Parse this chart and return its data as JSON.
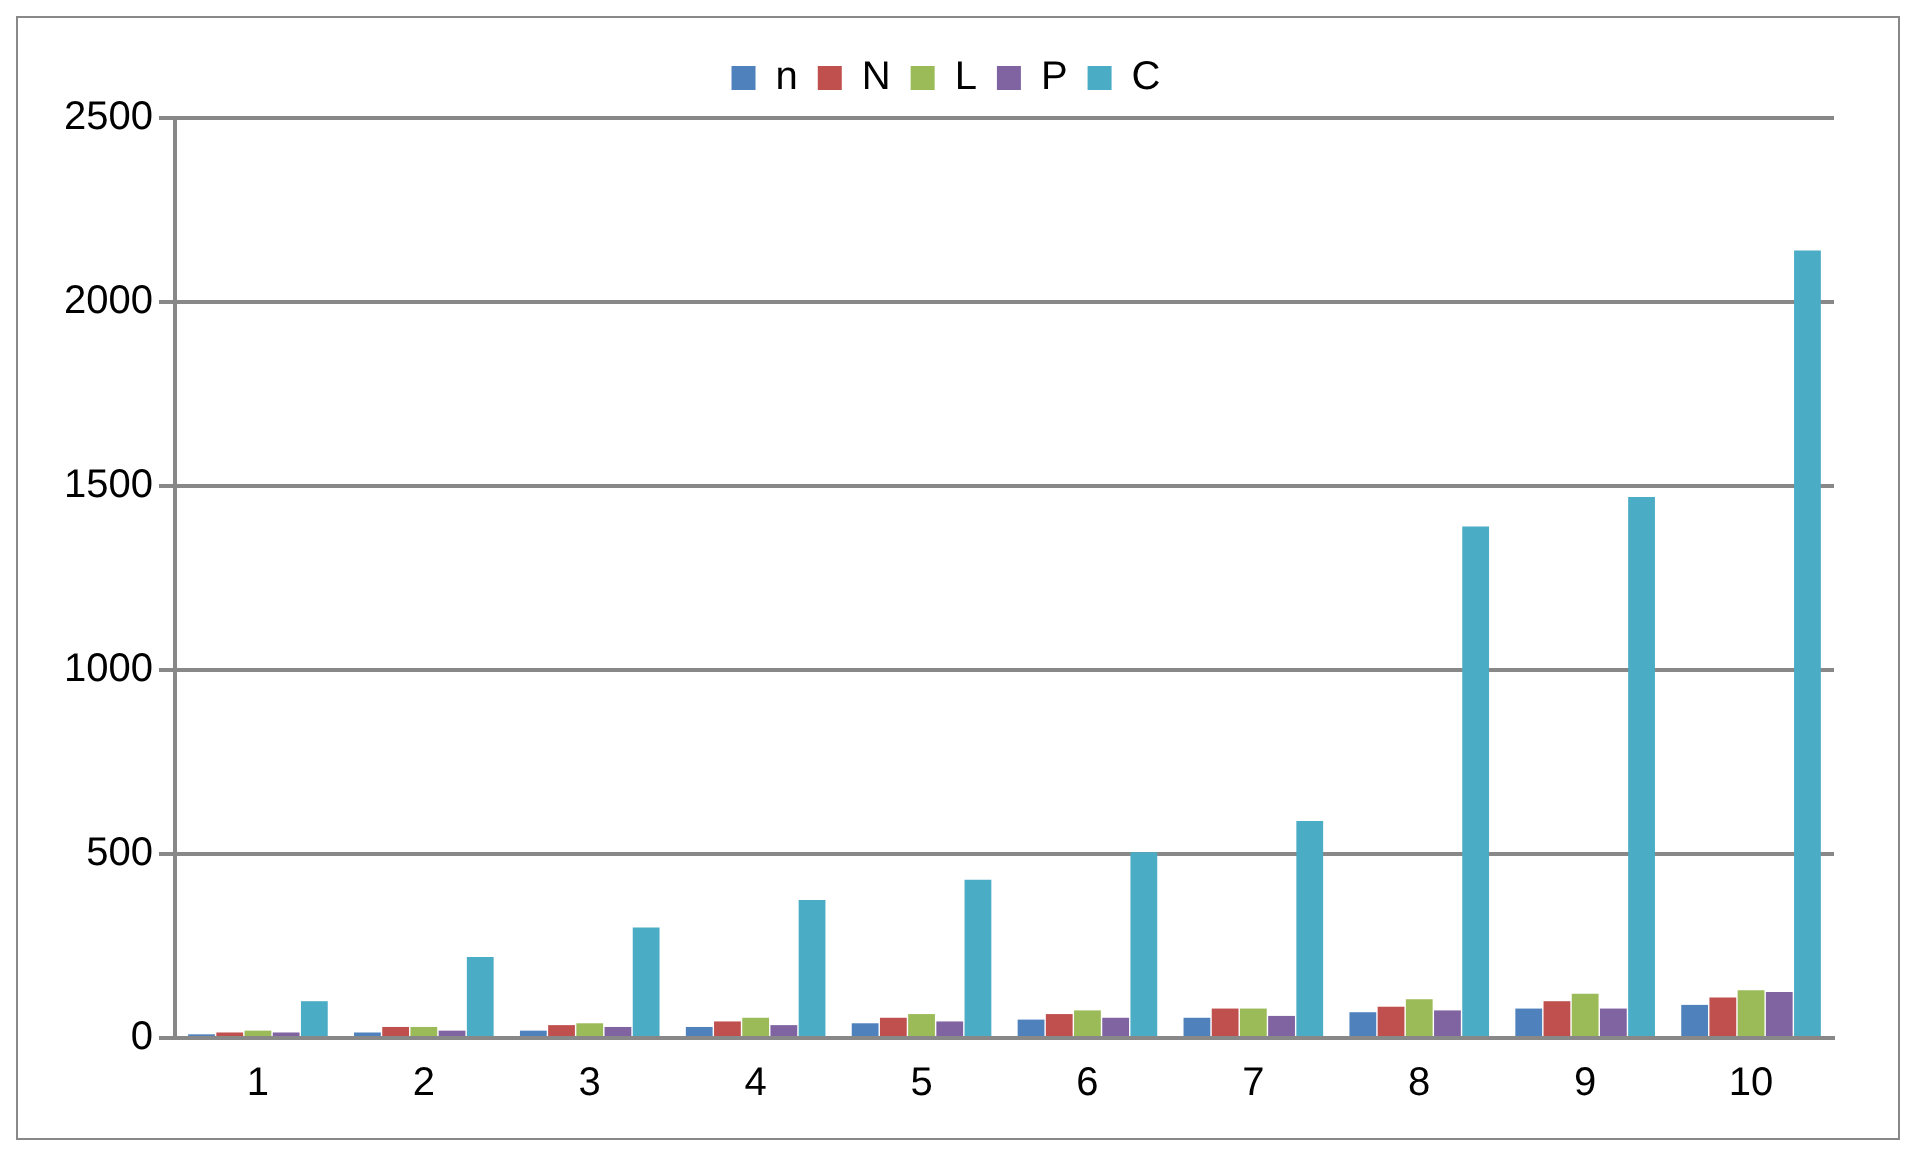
{
  "chart_data": {
    "type": "bar",
    "categories": [
      "1",
      "2",
      "3",
      "4",
      "5",
      "6",
      "7",
      "8",
      "9",
      "10"
    ],
    "series": [
      {
        "name": "n",
        "color": "#4f81bd",
        "values": [
          10,
          15,
          20,
          30,
          40,
          50,
          55,
          70,
          80,
          90
        ]
      },
      {
        "name": "N",
        "color": "#c0504d",
        "values": [
          15,
          30,
          35,
          45,
          55,
          65,
          80,
          85,
          100,
          110
        ]
      },
      {
        "name": "L",
        "color": "#9bbb59",
        "values": [
          20,
          30,
          40,
          55,
          65,
          75,
          80,
          105,
          120,
          130
        ]
      },
      {
        "name": "P",
        "color": "#8064a2",
        "values": [
          15,
          20,
          30,
          35,
          45,
          55,
          60,
          75,
          80,
          125
        ]
      },
      {
        "name": "C",
        "color": "#4bacc6",
        "values": [
          100,
          220,
          300,
          375,
          430,
          505,
          590,
          1390,
          1470,
          2140
        ]
      }
    ],
    "ylim": [
      0,
      2500
    ],
    "yticks": [
      0,
      500,
      1000,
      1500,
      2000,
      2500
    ],
    "grid": "y",
    "legend": "top"
  }
}
